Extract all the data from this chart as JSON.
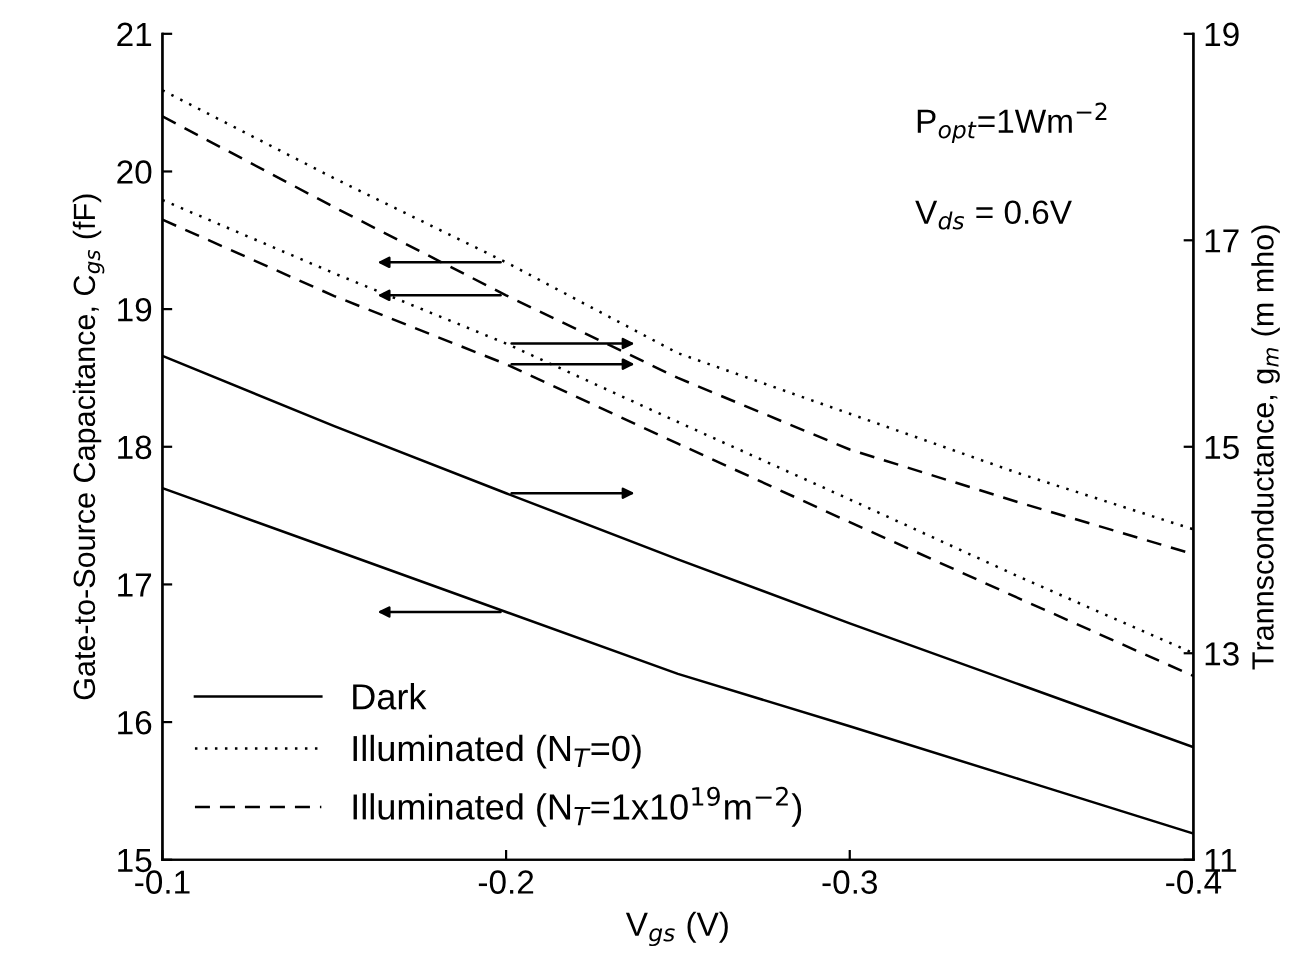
{
  "chart_data": {
    "type": "line",
    "xlabel": "V$_{gs}$ (V)",
    "ylabel": "Gate-to-Source Capacitance, C$_{gs}$ (fF)",
    "y2label": "Trannsconductance, g$_{m}$ (m mho)",
    "annotations": [
      "P$_{opt}$=1Wm$^{−2}$",
      "V$_{ds}$ = 0.6V"
    ],
    "x": [
      -0.1,
      -0.15,
      -0.2,
      -0.25,
      -0.3,
      -0.35,
      -0.4
    ],
    "xlim": [
      -0.1,
      -0.4
    ],
    "xticks": [
      -0.1,
      -0.2,
      -0.3,
      -0.4
    ],
    "ylim": [
      15,
      21
    ],
    "yticks": [
      15,
      16,
      17,
      18,
      19,
      20,
      21
    ],
    "y2lim": [
      11,
      19
    ],
    "y2ticks": [
      11,
      13,
      15,
      17,
      19
    ],
    "grid": false,
    "legend": "bottom left",
    "marker": "none",
    "series": [
      {
        "name": "Dark",
        "color": "#000000",
        "line_style": "solid",
        "values": [
          17.7,
          17.25,
          16.8,
          16.35,
          15.97,
          15.58,
          15.19
        ]
      },
      {
        "color": "#000000",
        "line_style": "solid",
        "axis": "y2",
        "values": [
          15.88,
          15.2,
          14.55,
          13.91,
          13.29,
          12.69,
          12.09
        ]
      },
      {
        "name": "Illuminated (N$_{T}$=0)",
        "color": "#000000",
        "line_style": "dotted",
        "values": [
          20.59,
          19.95,
          19.34,
          18.68,
          18.24,
          17.8,
          17.4
        ]
      },
      {
        "color": "#000000",
        "line_style": "dotted",
        "axis": "y2",
        "values": [
          17.39,
          16.68,
          16.0,
          15.24,
          14.49,
          13.73,
          13.0
        ]
      },
      {
        "name": "Illuminated (N$_{T}$=1x10$^{19}$m$^{−2}$)",
        "color": "#000000",
        "line_style": "dashed",
        "values": [
          20.4,
          19.74,
          19.1,
          18.5,
          17.98,
          17.59,
          17.22
        ]
      },
      {
        "color": "#000000",
        "line_style": "dashed",
        "axis": "y2",
        "values": [
          17.2,
          16.46,
          15.8,
          15.03,
          14.27,
          13.52,
          12.78
        ]
      }
    ]
  }
}
